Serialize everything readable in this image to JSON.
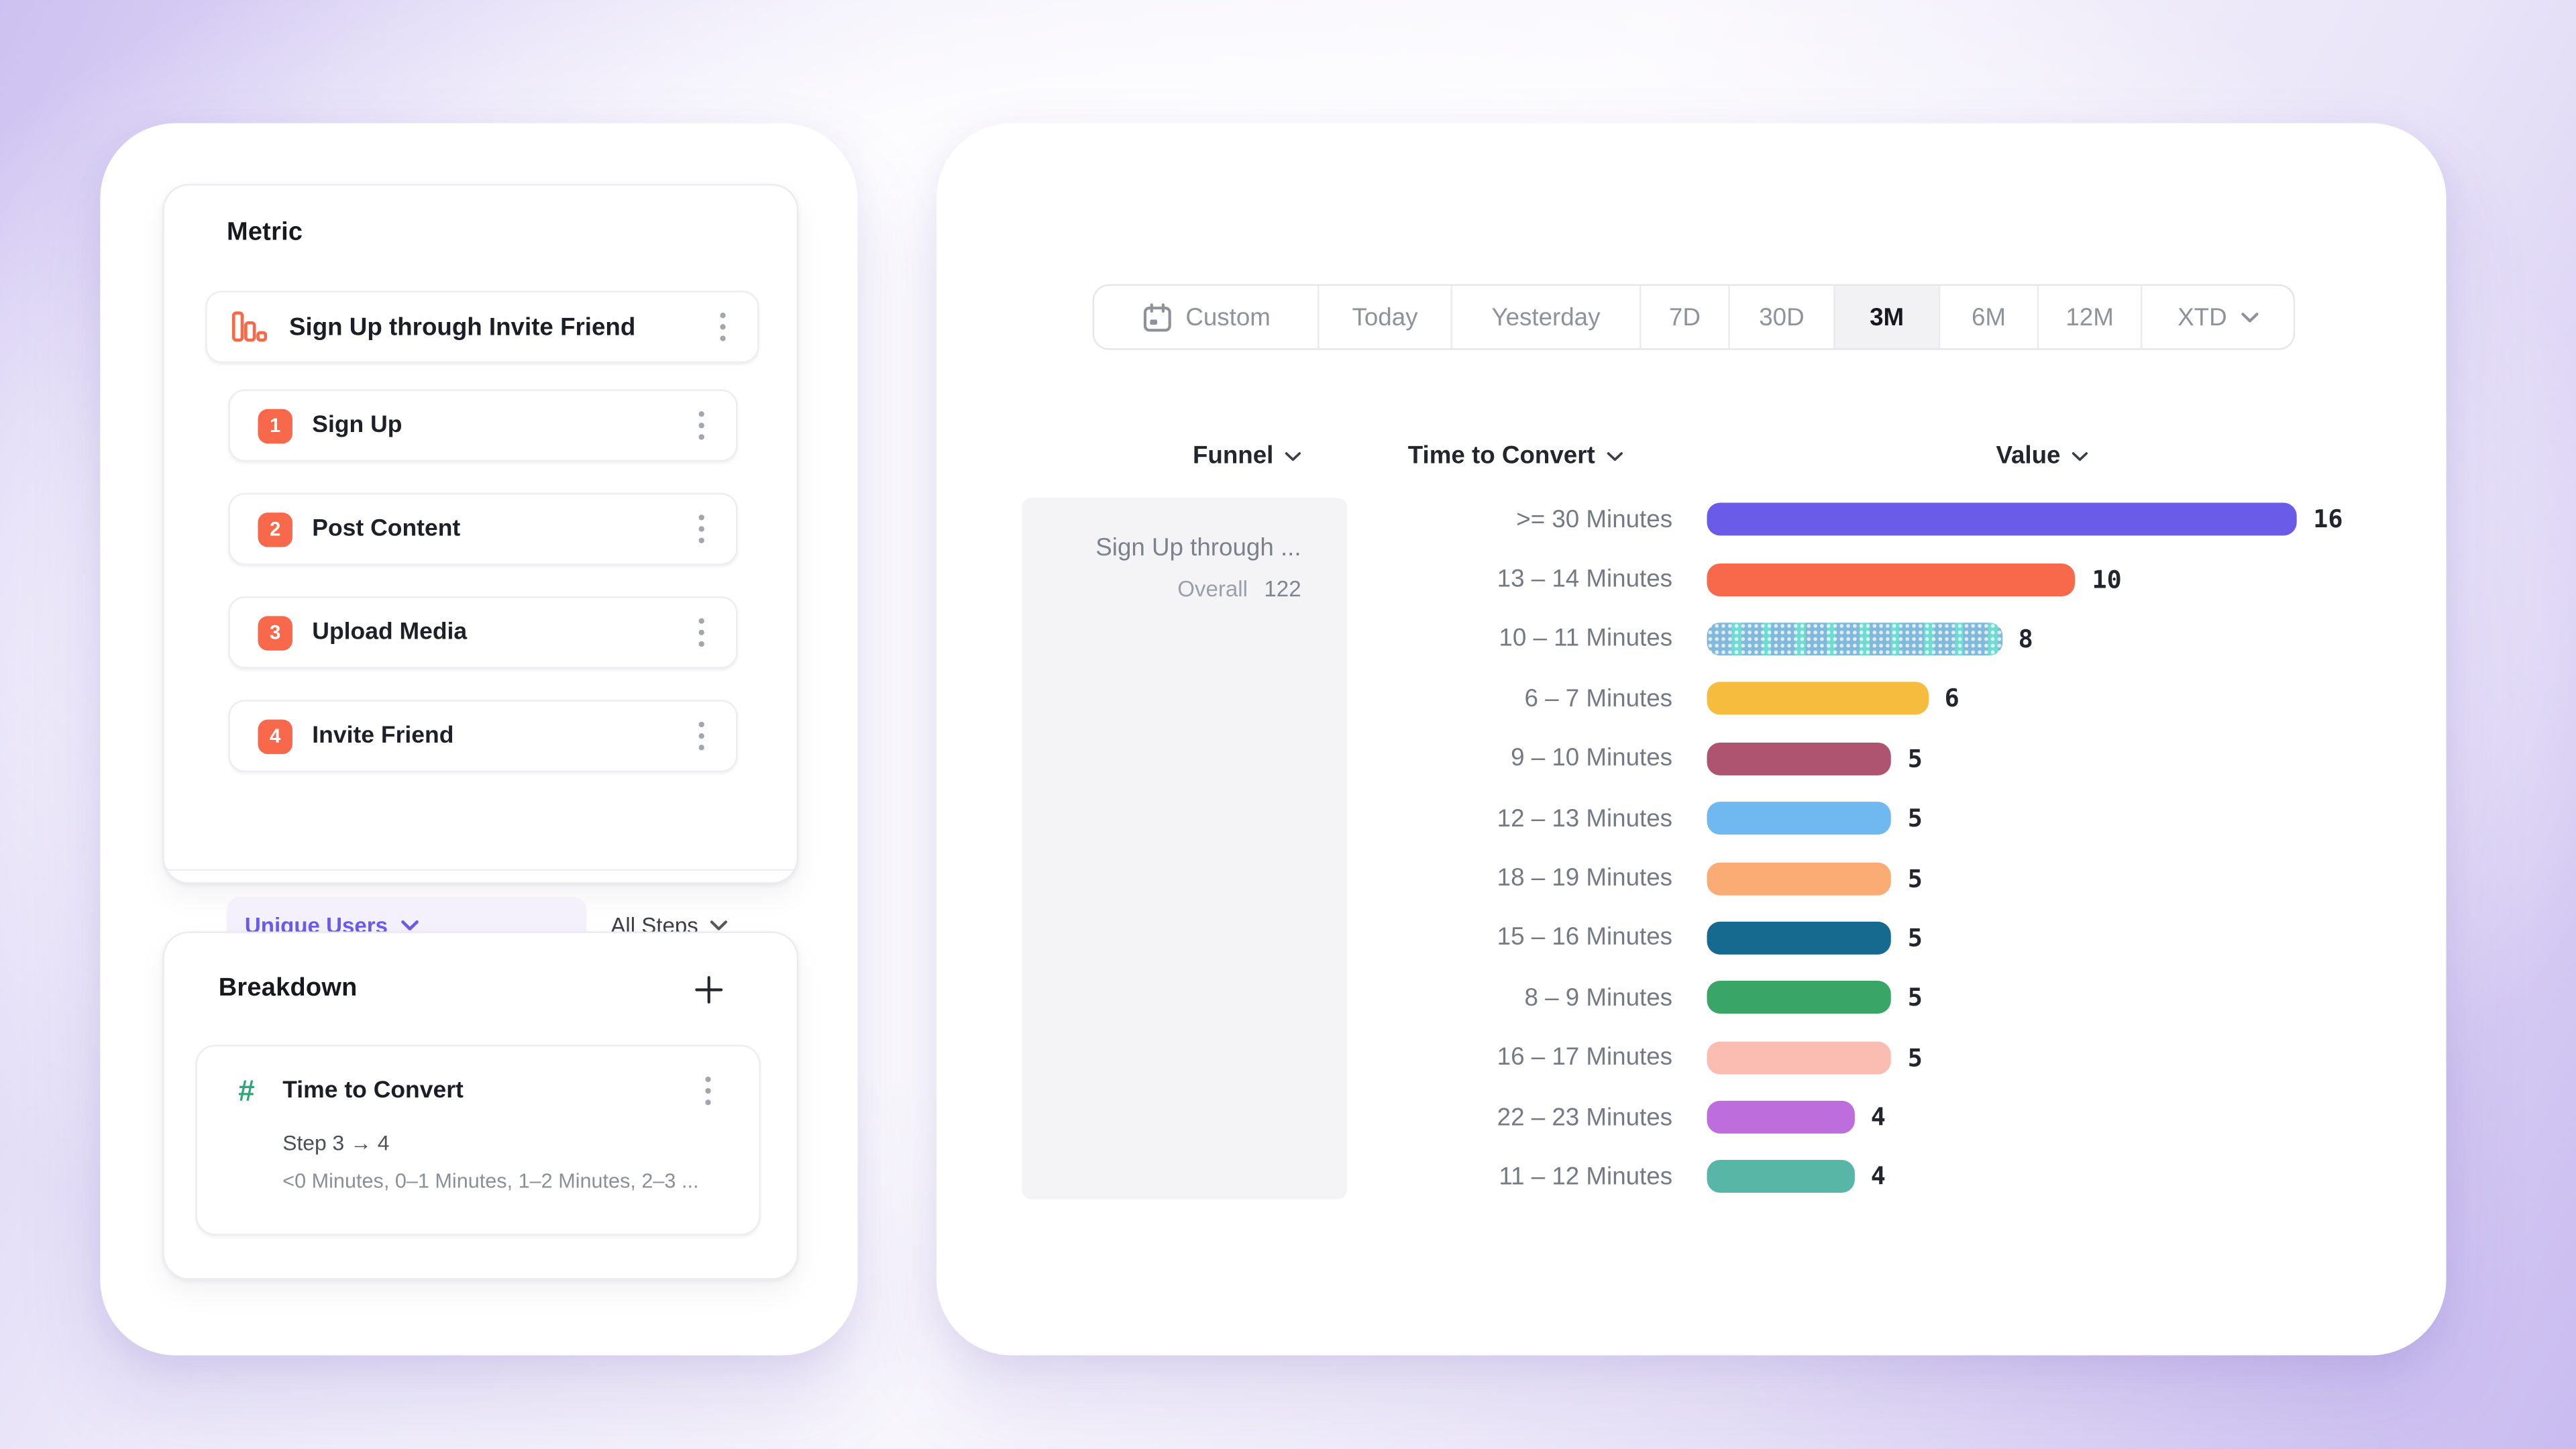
{
  "colors": {
    "accent_purple": "#6A5BE8",
    "step_orange": "#F8684A",
    "hash_green": "#2AA875",
    "active_segment_bg": "#F2F2F4",
    "funnel_cell_bg": "#F4F4F6"
  },
  "icons": {
    "metric": "bar-chart-icon",
    "breakdown": "hash-icon",
    "custom_range": "calendar-icon",
    "row_menu": "kebab-menu-icon",
    "add": "plus-icon",
    "dropdown": "chevron-down-icon"
  },
  "metric_panel": {
    "heading": "Metric",
    "funnel_name": "Sign Up through Invite Friend",
    "steps": [
      {
        "num": "1",
        "label": "Sign Up"
      },
      {
        "num": "2",
        "label": "Post Content"
      },
      {
        "num": "3",
        "label": "Upload Media"
      },
      {
        "num": "4",
        "label": "Invite Friend"
      }
    ],
    "counting_dropdown": "Unique Users",
    "steps_dropdown": "All Steps"
  },
  "breakdown_panel": {
    "heading": "Breakdown",
    "property_name": "Time to Convert",
    "step_range": "Step 3 → 4",
    "buckets_preview": "<0 Minutes, 0–1 Minutes, 1–2 Minutes, 2–3 ..."
  },
  "date_picker": {
    "options": [
      "Custom",
      "Today",
      "Yesterday",
      "7D",
      "30D",
      "3M",
      "6M",
      "12M",
      "XTD"
    ],
    "selected": "3M"
  },
  "table": {
    "headers": {
      "funnel": "Funnel",
      "breakdown": "Time to Convert",
      "value": "Value"
    },
    "funnel_cell": {
      "name": "Sign Up through ...",
      "overall_label": "Overall",
      "overall_value": "122"
    }
  },
  "chart_data": {
    "type": "bar",
    "orientation": "horizontal",
    "title": "",
    "xlabel": "",
    "ylabel": "",
    "xlim": [
      0,
      16
    ],
    "grid": false,
    "value_labels_shown": true,
    "categories": [
      ">= 30 Minutes",
      "13 – 14 Minutes",
      "10 – 11 Minutes",
      "6 – 7 Minutes",
      "9 – 10 Minutes",
      "12 – 13 Minutes",
      "18 – 19 Minutes",
      "15 – 16 Minutes",
      "8 – 9 Minutes",
      "16 – 17 Minutes",
      "22 – 23 Minutes",
      "11 – 12 Minutes"
    ],
    "values": [
      16,
      10,
      8,
      6,
      5,
      5,
      5,
      5,
      5,
      5,
      4,
      4
    ],
    "colors": [
      "#6A5BE8",
      "#F8684A",
      "#6FDCD2",
      "#F6BC3E",
      "#AF5470",
      "#6FB8F0",
      "#FBAB74",
      "#166A8F",
      "#39A567",
      "#FBBDB2",
      "#BD6EDC",
      "#58B6A6"
    ],
    "patterned_index": 2
  }
}
